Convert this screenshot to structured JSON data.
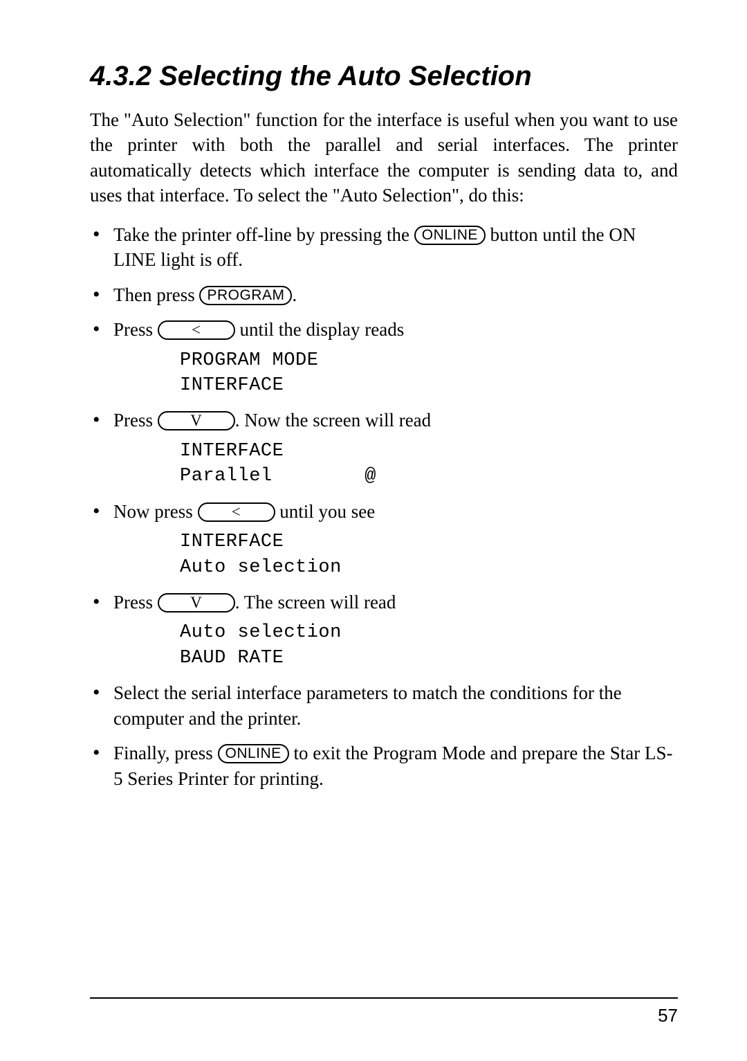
{
  "heading": "4.3.2 Selecting the Auto Selection",
  "intro": "The \"Auto Selection\" function for the interface is useful when you want to use the printer with both the parallel and serial interfaces. The printer automatically detects which interface the computer is sending data to, and uses that interface. To select the \"Auto Selection\", do this:",
  "keys": {
    "online": "ONLINE",
    "program": "PROGRAM",
    "left": "<",
    "down": "V"
  },
  "steps": {
    "s1_a": "Take the printer off-line by pressing the ",
    "s1_b": " button until the ON LINE light is off.",
    "s2_a": "Then press ",
    "s2_b": ".",
    "s3_a": "Press ",
    "s3_b": " until the display reads",
    "s4_a": "Press ",
    "s4_b": ". Now the screen will read",
    "s5_a": "Now press ",
    "s5_b": " until you see",
    "s6_a": "Press ",
    "s6_b": ". The screen will read",
    "s7": "Select the serial interface parameters to match the conditions for the computer and the printer.",
    "s8_a": "Finally, press ",
    "s8_b": " to exit the Program Mode and prepare the Star LS-5 Series Printer for printing."
  },
  "displays": {
    "d1": "PROGRAM MODE\nINTERFACE",
    "d2": "INTERFACE\nParallel        @",
    "d3": "INTERFACE\nAuto selection",
    "d4": "Auto selection\nBAUD RATE"
  },
  "pageNumber": "57"
}
